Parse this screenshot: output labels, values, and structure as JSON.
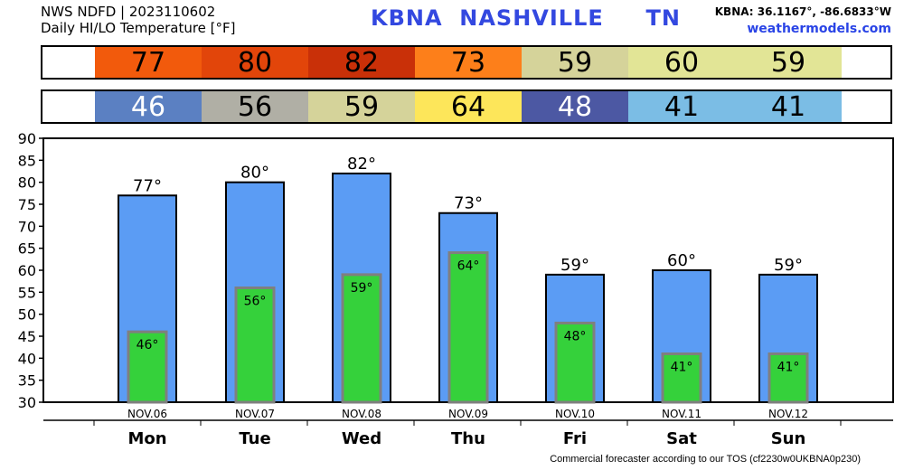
{
  "header": {
    "line1": "NWS NDFD | 2023110602",
    "line2": "Daily HI/LO Temperature [°F]",
    "station_title": "KBNA  NASHVILLE     TN",
    "coords": "KBNA: 36.1167°, -86.6833°W",
    "website": "weathermodels.com"
  },
  "strips": {
    "hi": [
      {
        "value": "77",
        "color": "#f25a0c"
      },
      {
        "value": "80",
        "color": "#e2450a"
      },
      {
        "value": "82",
        "color": "#c93008"
      },
      {
        "value": "73",
        "color": "#fd7f1a"
      },
      {
        "value": "59",
        "color": "#d5d39a"
      },
      {
        "value": "60",
        "color": "#e2e596"
      },
      {
        "value": "59",
        "color": "#e2e596"
      }
    ],
    "lo": [
      {
        "value": "46",
        "color": "#5b80c2",
        "text_color": "#ffffff"
      },
      {
        "value": "56",
        "color": "#b0afa5",
        "text_color": "#000000"
      },
      {
        "value": "59",
        "color": "#d5d39a",
        "text_color": "#000000"
      },
      {
        "value": "64",
        "color": "#fde65a",
        "text_color": "#000000"
      },
      {
        "value": "48",
        "color": "#4c58a3",
        "text_color": "#ffffff"
      },
      {
        "value": "41",
        "color": "#7bbde5",
        "text_color": "#000000"
      },
      {
        "value": "41",
        "color": "#7bbde5",
        "text_color": "#000000"
      }
    ]
  },
  "chart_data": {
    "type": "bar",
    "categories": [
      "Mon",
      "Tue",
      "Wed",
      "Thu",
      "Fri",
      "Sat",
      "Sun"
    ],
    "dates": [
      "NOV.06",
      "NOV.07",
      "NOV.08",
      "NOV.09",
      "NOV.10",
      "NOV.11",
      "NOV.12"
    ],
    "series": [
      {
        "values": [
          77,
          80,
          82,
          73,
          59,
          60,
          59
        ],
        "color": "#5b9cf4"
      },
      {
        "values": [
          46,
          56,
          59,
          64,
          48,
          41,
          41
        ],
        "color": "#35d13b"
      }
    ],
    "hi_labels": [
      "77°",
      "80°",
      "82°",
      "73°",
      "59°",
      "60°",
      "59°"
    ],
    "lo_labels": [
      "46°",
      "56°",
      "59°",
      "64°",
      "48°",
      "41°",
      "41°"
    ],
    "ylim": [
      30,
      90
    ],
    "yticks": [
      "30",
      "35",
      "40",
      "45",
      "50",
      "55",
      "60",
      "65",
      "70",
      "75",
      "80",
      "85",
      "90"
    ],
    "grid": false
  },
  "footer": "Commercial forecaster according to our TOS (cf2230w0UKBNA0p230)"
}
